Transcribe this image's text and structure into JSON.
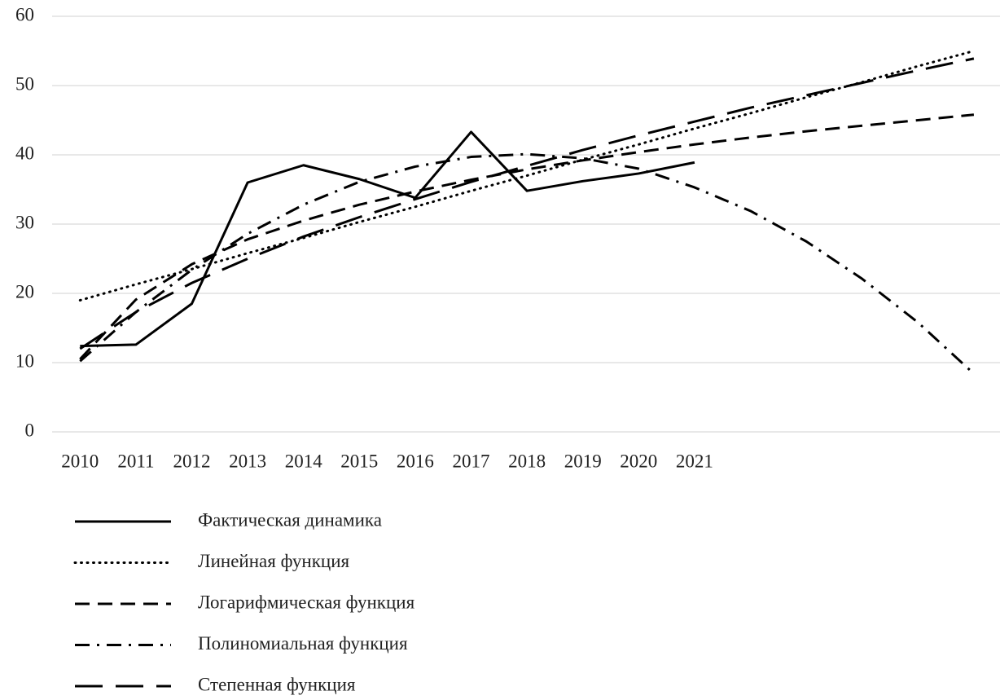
{
  "chart_data": {
    "type": "line",
    "categories": [
      "2010",
      "2011",
      "2012",
      "2013",
      "2014",
      "2015",
      "2016",
      "2017",
      "2018",
      "2019",
      "2020",
      "2021",
      null,
      null,
      null,
      null,
      null
    ],
    "ylim": [
      0,
      60
    ],
    "yticks": [
      0,
      10,
      20,
      30,
      40,
      50,
      60
    ],
    "grid": true,
    "series": [
      {
        "name": "Фактическая динамика",
        "color": "#000000",
        "dash": "solid",
        "values": [
          12.4,
          12.6,
          18.5,
          36.0,
          38.5,
          36.5,
          33.8,
          43.3,
          34.8,
          36.2,
          37.3,
          38.9,
          null,
          null,
          null,
          null,
          null
        ]
      },
      {
        "name": "Линейная функция",
        "color": "#000000",
        "dash": "dotted",
        "values": [
          19,
          21.3,
          23.5,
          25.8,
          28,
          30.3,
          32.5,
          34.8,
          37,
          39.3,
          41.5,
          43.8,
          46,
          48.3,
          50.5,
          52.8,
          55
        ]
      },
      {
        "name": "Логарифмическая функция",
        "color": "#000000",
        "dash": "dashed",
        "values": [
          10.5,
          19.1,
          24.2,
          27.8,
          30.5,
          32.8,
          34.7,
          36.4,
          37.9,
          39.2,
          40.4,
          41.5,
          42.5,
          43.4,
          44.2,
          45.0,
          45.8
        ]
      },
      {
        "name": "Полиномиальная функция",
        "color": "#000000",
        "dash": "dashdot",
        "values": [
          10.2,
          17.3,
          23.4,
          28.6,
          32.8,
          36.1,
          38.3,
          39.7,
          40.1,
          39.5,
          38.0,
          35.3,
          31.9,
          27.5,
          22.1,
          15.8,
          8.4
        ]
      },
      {
        "name": "Степенная функция",
        "color": "#000000",
        "dash": "longdash",
        "values": [
          12,
          17.3,
          21.5,
          25.0,
          28.2,
          31.0,
          33.6,
          36.1,
          38.4,
          40.7,
          42.8,
          44.8,
          46.8,
          48.6,
          50.4,
          52.2,
          53.9
        ]
      }
    ]
  }
}
